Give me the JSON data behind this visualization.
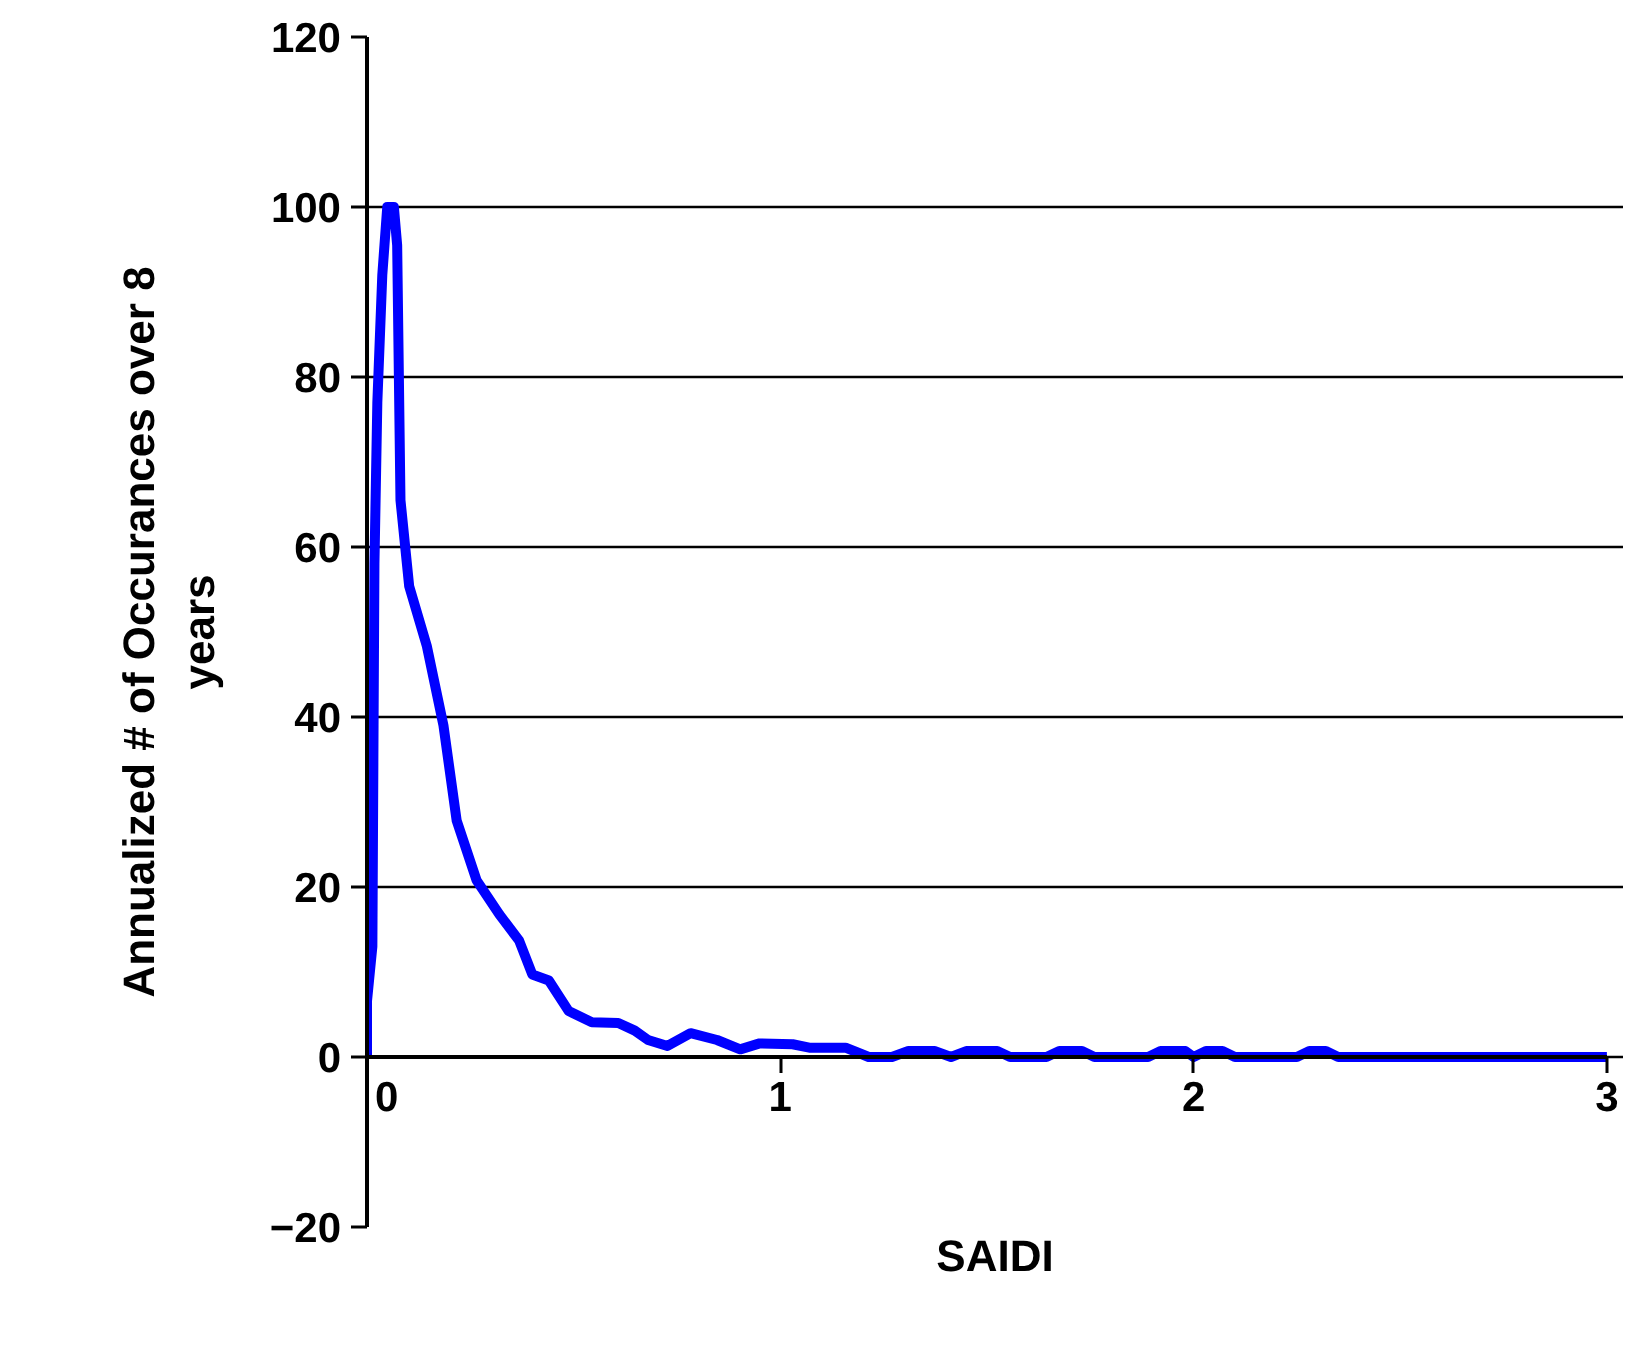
{
  "chart_data": {
    "type": "line",
    "xlabel": "SAIDI",
    "ylabel": "Annualized # of Occurances over 8 years",
    "xlim": [
      0,
      3
    ],
    "xticks": [
      0,
      1,
      2,
      3
    ],
    "ylim": [
      -20,
      120
    ],
    "yticks": [
      -20,
      0,
      20,
      40,
      60,
      80,
      100,
      120
    ],
    "grid": "y",
    "marker": "none",
    "line_style": "solid",
    "series": [
      {
        "color": "#0000ff",
        "x": [
          0,
          0.0,
          0.013,
          0.018,
          0.025,
          0.037,
          0.049,
          0.065,
          0.073,
          0.081,
          0.102,
          0.145,
          0.185,
          0.217,
          0.265,
          0.32,
          0.368,
          0.4,
          0.44,
          0.488,
          0.544,
          0.608,
          0.648,
          0.68,
          0.727,
          0.783,
          0.847,
          0.903,
          0.95,
          1.03,
          1.07,
          1.158,
          1.214,
          1.27,
          1.31,
          1.373,
          1.413,
          1.45,
          1.525,
          1.556,
          1.644,
          1.675,
          1.73,
          1.76,
          1.89,
          1.92,
          1.98,
          2.0,
          2.03,
          2.07,
          2.1,
          2.25,
          2.28,
          2.32,
          2.35,
          3.0
        ],
        "values": [
          0,
          6.6,
          13,
          58,
          77,
          92,
          100,
          100,
          95.5,
          65.5,
          55.4,
          48.3,
          39,
          27.8,
          20.8,
          16.8,
          13.7,
          9.7,
          9,
          5.4,
          4.1,
          4.0,
          3.1,
          2.0,
          1.3,
          2.8,
          2.0,
          0.9,
          1.6,
          1.5,
          1.1,
          1.1,
          0,
          0,
          0.7,
          0.7,
          0,
          0.7,
          0.7,
          0,
          0,
          0.7,
          0.7,
          0,
          0,
          0.7,
          0.7,
          0,
          0.7,
          0.7,
          0,
          0,
          0.7,
          0.7,
          0,
          0
        ]
      }
    ]
  }
}
